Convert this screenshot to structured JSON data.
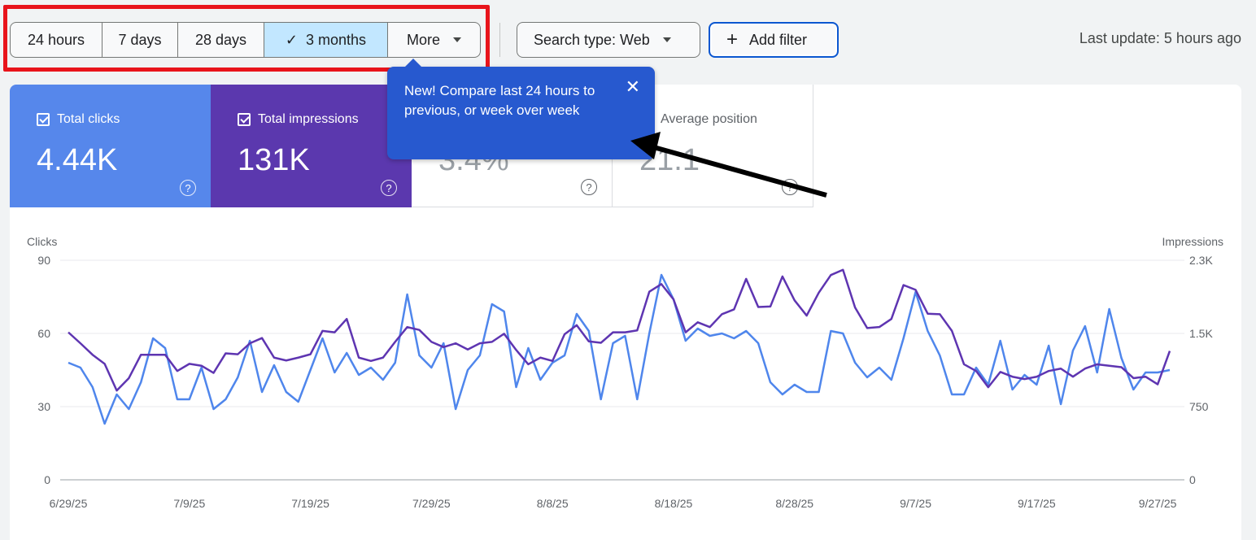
{
  "toolbar": {
    "ranges": [
      "24 hours",
      "7 days",
      "28 days",
      "3 months"
    ],
    "selected_range": "3 months",
    "more_label": "More",
    "search_type_label": "Search type: Web",
    "add_filter_label": "Add filter",
    "last_update": "Last update: 5 hours ago"
  },
  "tooltip": {
    "text": "New! Compare last 24 hours to previous, or week over week",
    "close_icon": "close-icon"
  },
  "metrics": [
    {
      "label": "Total clicks",
      "value": "4.44K",
      "checked": true,
      "color": "#5687eb"
    },
    {
      "label": "Total impressions",
      "value": "131K",
      "checked": true,
      "color": "#5b38ae"
    },
    {
      "label": "",
      "value": "3.4%",
      "checked": false
    },
    {
      "label": "Average position",
      "value": "21.1",
      "checked": false
    }
  ],
  "colors": {
    "clicks": "#4f86ec",
    "impressions": "#5e35b1",
    "highlight": "#e8141b",
    "tooltip": "#2759cf"
  },
  "chart_data": {
    "type": "line",
    "ylabel_left": "Clicks",
    "ylabel_right": "Impressions",
    "ylim_left": [
      0,
      90
    ],
    "ylim_right": [
      0,
      2300
    ],
    "yticks_left": [
      "0",
      "30",
      "60",
      "90"
    ],
    "yticks_right": [
      "0",
      "750",
      "1.5K",
      "2.3K"
    ],
    "x_ticks": [
      "6/29/25",
      "7/9/25",
      "7/19/25",
      "7/29/25",
      "8/8/25",
      "8/18/25",
      "8/28/25",
      "9/7/25",
      "9/17/25",
      "9/27/25"
    ],
    "x_start": "6/29/25",
    "x_end": "9/28/25",
    "grid": true,
    "series": [
      {
        "name": "Clicks",
        "axis": "left",
        "values": [
          48,
          46,
          38,
          23,
          35,
          29,
          40,
          58,
          54,
          33,
          33,
          46,
          29,
          33,
          42,
          57,
          36,
          47,
          36,
          32,
          45,
          58,
          44,
          52,
          43,
          46,
          41,
          48,
          76,
          51,
          46,
          56,
          29,
          45,
          51,
          72,
          69,
          38,
          54,
          41,
          48,
          51,
          68,
          61,
          33,
          56,
          59,
          33,
          60,
          84,
          74,
          57,
          62,
          59,
          60,
          58,
          61,
          56,
          40,
          35,
          39,
          36,
          36,
          61,
          60,
          48,
          42,
          46,
          41,
          58,
          77,
          61,
          51,
          35,
          35,
          46,
          39,
          57,
          37,
          43,
          39,
          55,
          31,
          53,
          63,
          44,
          70,
          50,
          37,
          44,
          44,
          45
        ]
      },
      {
        "name": "Impressions",
        "axis": "right",
        "values": [
          1545,
          1430,
          1310,
          1215,
          935,
          1065,
          1310,
          1310,
          1310,
          1140,
          1215,
          1195,
          1120,
          1325,
          1315,
          1430,
          1485,
          1280,
          1250,
          1280,
          1315,
          1560,
          1545,
          1685,
          1280,
          1245,
          1280,
          1445,
          1600,
          1570,
          1445,
          1390,
          1430,
          1365,
          1430,
          1445,
          1530,
          1360,
          1210,
          1280,
          1245,
          1525,
          1620,
          1450,
          1435,
          1545,
          1545,
          1565,
          1970,
          2050,
          1890,
          1545,
          1650,
          1600,
          1735,
          1785,
          2105,
          1810,
          1815,
          2130,
          1880,
          1720,
          1960,
          2145,
          2200,
          1805,
          1590,
          1600,
          1685,
          2040,
          1990,
          1740,
          1735,
          1560,
          1210,
          1140,
          970,
          1130,
          1080,
          1055,
          1080,
          1140,
          1165,
          1080,
          1165,
          1210,
          1195,
          1180,
          1065,
          1080,
          1000,
          1350
        ]
      }
    ]
  }
}
